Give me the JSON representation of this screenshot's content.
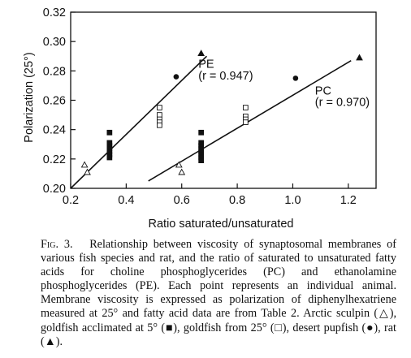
{
  "chart_data": {
    "type": "scatter",
    "xlabel": "Ratio saturated/unsaturated",
    "ylabel": "Polarization (25°)",
    "xlim": [
      0.2,
      1.3
    ],
    "ylim": [
      0.2,
      0.32
    ],
    "xticks": [
      0.2,
      0.4,
      0.6,
      0.8,
      1.0,
      1.2
    ],
    "xtick_labels": [
      "0.2",
      "0.4",
      "0.6",
      "0.8",
      "1.0",
      "1.2"
    ],
    "yticks": [
      0.2,
      0.22,
      0.24,
      0.26,
      0.28,
      0.3,
      0.32
    ],
    "ytick_labels": [
      "0.20",
      "0.22",
      "0.24",
      "0.26",
      "0.28",
      "0.30",
      "0.32"
    ],
    "grid": false,
    "series": [
      {
        "marker": "open-triangle",
        "points": [
          [
            0.25,
            0.216
          ],
          [
            0.26,
            0.211
          ],
          [
            0.59,
            0.216
          ],
          [
            0.6,
            0.211
          ]
        ]
      },
      {
        "marker": "filled-square",
        "points": [
          [
            0.34,
            0.238
          ],
          [
            0.34,
            0.231
          ],
          [
            0.34,
            0.229
          ],
          [
            0.34,
            0.227
          ],
          [
            0.34,
            0.225
          ],
          [
            0.34,
            0.223
          ],
          [
            0.34,
            0.221
          ],
          [
            0.67,
            0.238
          ],
          [
            0.67,
            0.231
          ],
          [
            0.67,
            0.229
          ],
          [
            0.67,
            0.227
          ],
          [
            0.67,
            0.225
          ],
          [
            0.67,
            0.223
          ],
          [
            0.67,
            0.221
          ],
          [
            0.67,
            0.219
          ]
        ]
      },
      {
        "marker": "open-square",
        "points": [
          [
            0.52,
            0.255
          ],
          [
            0.52,
            0.25
          ],
          [
            0.52,
            0.247
          ],
          [
            0.52,
            0.245
          ],
          [
            0.52,
            0.243
          ],
          [
            0.83,
            0.255
          ],
          [
            0.83,
            0.249
          ],
          [
            0.83,
            0.247
          ],
          [
            0.83,
            0.245
          ]
        ]
      },
      {
        "marker": "filled-circle",
        "points": [
          [
            0.58,
            0.276
          ],
          [
            1.01,
            0.275
          ]
        ]
      },
      {
        "marker": "filled-triangle",
        "points": [
          [
            0.67,
            0.292
          ],
          [
            1.24,
            0.289
          ]
        ]
      }
    ],
    "fit_lines": [
      {
        "label": "PE",
        "r_label": "(r = 0.947)",
        "from": [
          0.2,
          0.2
        ],
        "to": [
          0.69,
          0.29
        ]
      },
      {
        "label": "PC",
        "r_label": "(r = 0.970)",
        "from": [
          0.48,
          0.205
        ],
        "to": [
          1.21,
          0.287
        ]
      }
    ]
  },
  "caption": {
    "fig_label": "Fig. 3.",
    "text": "Relationship between viscosity of synaptosomal membranes of various fish species and rat, and the ratio of saturated to unsaturated fatty acids for choline phosphoglycerides (PC) and ethanolamine phosphoglycerides (PE). Each point represents an individual animal. Membrane viscosity is expressed as polarization of diphenylhexatriene measured at 25° and fatty acid data are from Table 2. Arctic sculpin (△), goldfish acclimated at 5° (■), goldfish from 25° (□), desert pupfish (●), rat (▲)."
  }
}
